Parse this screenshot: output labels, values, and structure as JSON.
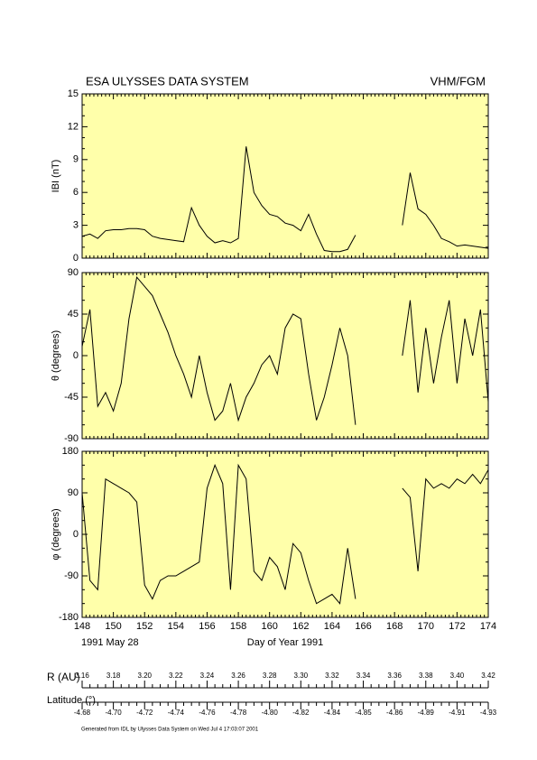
{
  "chart_data": {
    "type": "line",
    "title": "ESA ULYSSES DATA SYSTEM",
    "instrument": "VHM/FGM",
    "xlabel": "Day of Year 1991",
    "date_label": "1991 May 28",
    "footer": "Generated from IDL by Ulysses Data System on Wed Jul  4 17:03:07 2001",
    "xlim": [
      148,
      174
    ],
    "xticks": [
      148,
      150,
      152,
      154,
      156,
      158,
      160,
      162,
      164,
      166,
      168,
      170,
      172,
      174
    ],
    "x": [
      148,
      148.5,
      149,
      149.5,
      150,
      150.5,
      151,
      151.5,
      152,
      152.5,
      153,
      153.5,
      154,
      154.5,
      155,
      155.5,
      156,
      156.5,
      157,
      157.5,
      158,
      158.5,
      159,
      159.5,
      160,
      160.5,
      161,
      161.5,
      162,
      162.5,
      163,
      163.5,
      164,
      164.5,
      165,
      165.5,
      166,
      166.5,
      167,
      167.5,
      168,
      168.5,
      169,
      169.5,
      170,
      170.5,
      171,
      171.5,
      172,
      172.5,
      173,
      173.5,
      174
    ],
    "color": "#000000",
    "background": "#ffffaa",
    "panels": [
      {
        "ylabel": "IBI (nT)",
        "ylim": [
          0,
          15
        ],
        "yticks": [
          0,
          3,
          6,
          9,
          12,
          15
        ],
        "values": [
          2.0,
          2.2,
          1.8,
          2.5,
          2.6,
          2.6,
          2.7,
          2.7,
          2.6,
          2.0,
          1.8,
          1.7,
          1.6,
          1.5,
          4.6,
          3.0,
          2.0,
          1.4,
          1.6,
          1.4,
          1.8,
          10.2,
          6.0,
          4.8,
          4.0,
          3.8,
          3.2,
          3.0,
          2.5,
          4.0,
          2.2,
          0.7,
          0.6,
          0.6,
          0.8,
          2.1,
          null,
          null,
          null,
          null,
          null,
          3.0,
          7.8,
          4.5,
          4.0,
          3.0,
          1.8,
          1.5,
          1.1,
          1.2,
          1.1,
          1.0,
          0.9
        ]
      },
      {
        "ylabel": "θ (degrees)",
        "ylim": [
          -90,
          90
        ],
        "yticks": [
          -90,
          -45,
          0,
          45,
          90
        ],
        "values": [
          10,
          50,
          -55,
          -40,
          -60,
          -30,
          40,
          85,
          75,
          65,
          45,
          25,
          0,
          -20,
          -45,
          0,
          -40,
          -70,
          -60,
          -30,
          -70,
          -45,
          -30,
          -10,
          0,
          -20,
          30,
          45,
          40,
          -20,
          -70,
          -45,
          -10,
          30,
          0,
          -75,
          null,
          null,
          null,
          null,
          null,
          0,
          60,
          -40,
          30,
          -30,
          20,
          60,
          -30,
          40,
          0,
          50,
          -50
        ]
      },
      {
        "ylabel": "φ (degrees)",
        "ylim": [
          -180,
          180
        ],
        "yticks": [
          -180,
          -90,
          0,
          90,
          180
        ],
        "values": [
          90,
          -100,
          -120,
          120,
          110,
          100,
          90,
          70,
          -110,
          -140,
          -100,
          -90,
          -90,
          -80,
          -70,
          -60,
          100,
          150,
          110,
          -120,
          150,
          120,
          -80,
          -100,
          -50,
          -70,
          -120,
          -20,
          -40,
          -100,
          -150,
          -140,
          -130,
          -150,
          -30,
          -140,
          null,
          null,
          null,
          null,
          null,
          100,
          80,
          -80,
          120,
          100,
          110,
          100,
          120,
          110,
          130,
          110,
          140
        ]
      }
    ],
    "ephemeris": {
      "r_label": "R (AU)",
      "r_values": [
        3.16,
        3.18,
        {
          "value": 3.2,
          "label": "3.20"
        },
        3.22,
        3.24,
        3.26,
        3.28,
        {
          "value": 3.3,
          "label": "3.30"
        },
        3.32,
        3.34,
        3.36,
        3.38,
        {
          "value": 3.4,
          "label": "3.40"
        },
        3.42
      ],
      "lat_label": "Latitude (°)",
      "lat_values": [
        -4.68,
        {
          "value": -4.7,
          "label": "-4.70"
        },
        -4.72,
        -4.74,
        -4.76,
        -4.78,
        {
          "value": -4.8,
          "label": "-4.80"
        },
        -4.82,
        -4.84,
        -4.85,
        -4.86,
        -4.89,
        -4.91,
        -4.93
      ]
    }
  }
}
